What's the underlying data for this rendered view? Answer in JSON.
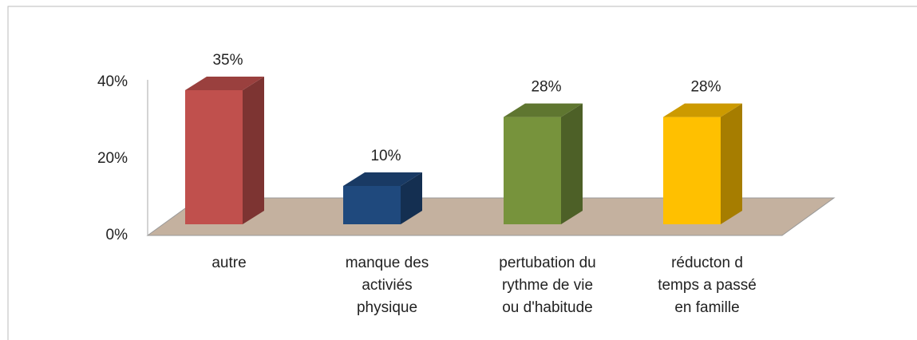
{
  "chart_data": {
    "type": "bar3d",
    "categories": [
      "autre",
      "manque des activiés physique",
      "pertubation du rythme de vie ou d'habitude",
      "réducton d temps a passé en famille"
    ],
    "values": [
      35,
      10,
      28,
      28
    ],
    "value_labels": [
      "35%",
      "10%",
      "28%",
      "28%"
    ],
    "colors": [
      "#c0504d",
      "#1f497d",
      "#77933c",
      "#ffc000"
    ],
    "ylim": [
      0,
      40
    ],
    "yticks": [
      {
        "value": 0,
        "label": "0%"
      },
      {
        "value": 20,
        "label": "20%"
      },
      {
        "value": 40,
        "label": "40%"
      }
    ]
  }
}
